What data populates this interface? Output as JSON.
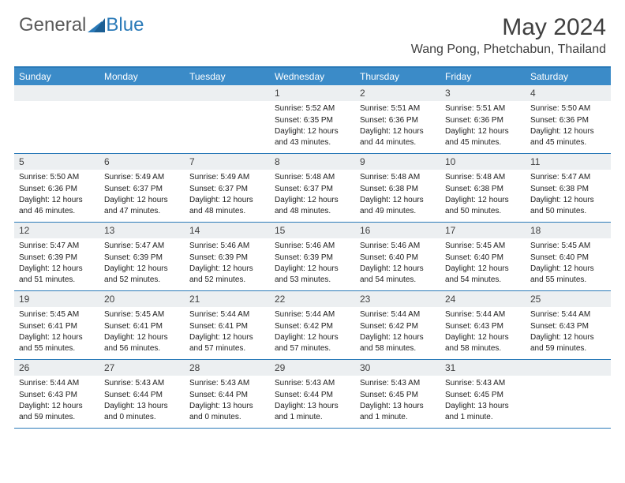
{
  "logo": {
    "text1": "General",
    "text2": "Blue"
  },
  "title": "May 2024",
  "location": "Wang Pong, Phetchabun, Thailand",
  "colors": {
    "header_bg": "#3b8bc8",
    "border": "#2a7ab8",
    "daynum_bg": "#eceff1",
    "text": "#404040"
  },
  "dayNames": [
    "Sunday",
    "Monday",
    "Tuesday",
    "Wednesday",
    "Thursday",
    "Friday",
    "Saturday"
  ],
  "weeks": [
    [
      null,
      null,
      null,
      {
        "n": "1",
        "sr": "5:52 AM",
        "ss": "6:35 PM",
        "dl": "12 hours and 43 minutes."
      },
      {
        "n": "2",
        "sr": "5:51 AM",
        "ss": "6:36 PM",
        "dl": "12 hours and 44 minutes."
      },
      {
        "n": "3",
        "sr": "5:51 AM",
        "ss": "6:36 PM",
        "dl": "12 hours and 45 minutes."
      },
      {
        "n": "4",
        "sr": "5:50 AM",
        "ss": "6:36 PM",
        "dl": "12 hours and 45 minutes."
      }
    ],
    [
      {
        "n": "5",
        "sr": "5:50 AM",
        "ss": "6:36 PM",
        "dl": "12 hours and 46 minutes."
      },
      {
        "n": "6",
        "sr": "5:49 AM",
        "ss": "6:37 PM",
        "dl": "12 hours and 47 minutes."
      },
      {
        "n": "7",
        "sr": "5:49 AM",
        "ss": "6:37 PM",
        "dl": "12 hours and 48 minutes."
      },
      {
        "n": "8",
        "sr": "5:48 AM",
        "ss": "6:37 PM",
        "dl": "12 hours and 48 minutes."
      },
      {
        "n": "9",
        "sr": "5:48 AM",
        "ss": "6:38 PM",
        "dl": "12 hours and 49 minutes."
      },
      {
        "n": "10",
        "sr": "5:48 AM",
        "ss": "6:38 PM",
        "dl": "12 hours and 50 minutes."
      },
      {
        "n": "11",
        "sr": "5:47 AM",
        "ss": "6:38 PM",
        "dl": "12 hours and 50 minutes."
      }
    ],
    [
      {
        "n": "12",
        "sr": "5:47 AM",
        "ss": "6:39 PM",
        "dl": "12 hours and 51 minutes."
      },
      {
        "n": "13",
        "sr": "5:47 AM",
        "ss": "6:39 PM",
        "dl": "12 hours and 52 minutes."
      },
      {
        "n": "14",
        "sr": "5:46 AM",
        "ss": "6:39 PM",
        "dl": "12 hours and 52 minutes."
      },
      {
        "n": "15",
        "sr": "5:46 AM",
        "ss": "6:39 PM",
        "dl": "12 hours and 53 minutes."
      },
      {
        "n": "16",
        "sr": "5:46 AM",
        "ss": "6:40 PM",
        "dl": "12 hours and 54 minutes."
      },
      {
        "n": "17",
        "sr": "5:45 AM",
        "ss": "6:40 PM",
        "dl": "12 hours and 54 minutes."
      },
      {
        "n": "18",
        "sr": "5:45 AM",
        "ss": "6:40 PM",
        "dl": "12 hours and 55 minutes."
      }
    ],
    [
      {
        "n": "19",
        "sr": "5:45 AM",
        "ss": "6:41 PM",
        "dl": "12 hours and 55 minutes."
      },
      {
        "n": "20",
        "sr": "5:45 AM",
        "ss": "6:41 PM",
        "dl": "12 hours and 56 minutes."
      },
      {
        "n": "21",
        "sr": "5:44 AM",
        "ss": "6:41 PM",
        "dl": "12 hours and 57 minutes."
      },
      {
        "n": "22",
        "sr": "5:44 AM",
        "ss": "6:42 PM",
        "dl": "12 hours and 57 minutes."
      },
      {
        "n": "23",
        "sr": "5:44 AM",
        "ss": "6:42 PM",
        "dl": "12 hours and 58 minutes."
      },
      {
        "n": "24",
        "sr": "5:44 AM",
        "ss": "6:43 PM",
        "dl": "12 hours and 58 minutes."
      },
      {
        "n": "25",
        "sr": "5:44 AM",
        "ss": "6:43 PM",
        "dl": "12 hours and 59 minutes."
      }
    ],
    [
      {
        "n": "26",
        "sr": "5:44 AM",
        "ss": "6:43 PM",
        "dl": "12 hours and 59 minutes."
      },
      {
        "n": "27",
        "sr": "5:43 AM",
        "ss": "6:44 PM",
        "dl": "13 hours and 0 minutes."
      },
      {
        "n": "28",
        "sr": "5:43 AM",
        "ss": "6:44 PM",
        "dl": "13 hours and 0 minutes."
      },
      {
        "n": "29",
        "sr": "5:43 AM",
        "ss": "6:44 PM",
        "dl": "13 hours and 1 minute."
      },
      {
        "n": "30",
        "sr": "5:43 AM",
        "ss": "6:45 PM",
        "dl": "13 hours and 1 minute."
      },
      {
        "n": "31",
        "sr": "5:43 AM",
        "ss": "6:45 PM",
        "dl": "13 hours and 1 minute."
      },
      null
    ]
  ],
  "labels": {
    "sunrise": "Sunrise:",
    "sunset": "Sunset:",
    "daylight": "Daylight:"
  }
}
